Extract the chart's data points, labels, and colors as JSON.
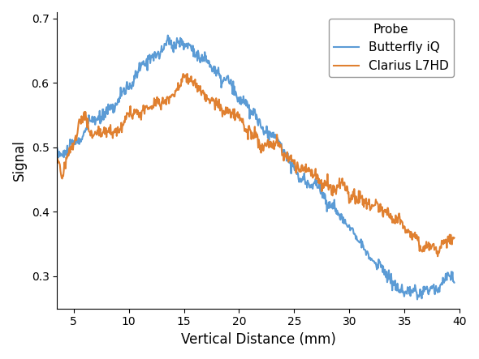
{
  "title": "",
  "xlabel": "Vertical Distance (mm)",
  "ylabel": "Signal",
  "xlim": [
    3.5,
    40
  ],
  "ylim": [
    0.25,
    0.71
  ],
  "yticks": [
    0.3,
    0.4,
    0.5,
    0.6,
    0.7
  ],
  "xticks": [
    5,
    10,
    15,
    20,
    25,
    30,
    35,
    40
  ],
  "legend_title": "Probe",
  "legend_labels": [
    "Butterfly iQ",
    "Clarius L7HD"
  ],
  "line_colors": [
    "#5B9BD5",
    "#E08030"
  ],
  "line_width": 1.5,
  "butterfly_x": [
    3.5,
    4.0,
    4.5,
    5.0,
    5.5,
    6.0,
    6.5,
    7.0,
    7.5,
    8.0,
    8.5,
    9.0,
    9.5,
    10.0,
    10.5,
    11.0,
    11.5,
    12.0,
    12.5,
    13.0,
    13.5,
    14.0,
    14.5,
    15.0,
    15.5,
    16.0,
    16.5,
    17.0,
    17.5,
    18.0,
    18.5,
    19.0,
    19.5,
    20.0,
    20.5,
    21.0,
    21.5,
    22.0,
    22.5,
    23.0,
    23.5,
    24.0,
    24.5,
    25.0,
    25.5,
    26.0,
    26.5,
    27.0,
    27.5,
    28.0,
    28.5,
    29.0,
    29.5,
    30.0,
    30.5,
    31.0,
    31.5,
    32.0,
    32.5,
    33.0,
    33.5,
    34.0,
    34.5,
    35.0,
    35.5,
    36.0,
    36.5,
    37.0,
    37.5,
    38.0,
    38.5,
    39.0,
    39.5
  ],
  "butterfly_y": [
    0.49,
    0.488,
    0.493,
    0.498,
    0.51,
    0.525,
    0.533,
    0.538,
    0.548,
    0.558,
    0.565,
    0.572,
    0.59,
    0.6,
    0.615,
    0.628,
    0.635,
    0.642,
    0.648,
    0.655,
    0.66,
    0.658,
    0.665,
    0.668,
    0.662,
    0.648,
    0.643,
    0.637,
    0.628,
    0.618,
    0.605,
    0.596,
    0.588,
    0.578,
    0.57,
    0.56,
    0.552,
    0.542,
    0.53,
    0.52,
    0.508,
    0.496,
    0.482,
    0.47,
    0.458,
    0.452,
    0.445,
    0.438,
    0.43,
    0.42,
    0.41,
    0.398,
    0.388,
    0.375,
    0.362,
    0.35,
    0.34,
    0.328,
    0.318,
    0.308,
    0.3,
    0.292,
    0.284,
    0.278,
    0.272,
    0.268,
    0.27,
    0.275,
    0.28,
    0.285,
    0.29,
    0.295,
    0.292
  ],
  "clarius_x": [
    3.5,
    4.0,
    4.5,
    5.0,
    5.5,
    6.0,
    6.5,
    7.0,
    7.5,
    8.0,
    8.5,
    9.0,
    9.5,
    10.0,
    10.5,
    11.0,
    11.5,
    12.0,
    12.5,
    13.0,
    13.5,
    14.0,
    14.5,
    15.0,
    15.5,
    16.0,
    16.5,
    17.0,
    17.5,
    18.0,
    18.5,
    19.0,
    19.5,
    20.0,
    20.5,
    21.0,
    21.5,
    22.0,
    22.5,
    23.0,
    23.5,
    24.0,
    24.5,
    25.0,
    25.5,
    26.0,
    26.5,
    27.0,
    27.5,
    28.0,
    28.5,
    29.0,
    29.5,
    30.0,
    30.5,
    31.0,
    31.5,
    32.0,
    32.5,
    33.0,
    33.5,
    34.0,
    34.5,
    35.0,
    35.5,
    36.0,
    36.5,
    37.0,
    37.5,
    38.0,
    38.5,
    39.0,
    39.5
  ],
  "clarius_y": [
    0.47,
    0.473,
    0.488,
    0.503,
    0.54,
    0.548,
    0.535,
    0.525,
    0.52,
    0.52,
    0.525,
    0.53,
    0.545,
    0.548,
    0.552,
    0.555,
    0.558,
    0.562,
    0.568,
    0.572,
    0.578,
    0.585,
    0.6,
    0.61,
    0.602,
    0.598,
    0.592,
    0.585,
    0.578,
    0.57,
    0.562,
    0.555,
    0.548,
    0.54,
    0.532,
    0.525,
    0.518,
    0.51,
    0.505,
    0.5,
    0.495,
    0.49,
    0.482,
    0.478,
    0.47,
    0.462,
    0.455,
    0.45,
    0.445,
    0.44,
    0.438,
    0.435,
    0.432,
    0.428,
    0.425,
    0.422,
    0.418,
    0.415,
    0.41,
    0.405,
    0.4,
    0.392,
    0.385,
    0.378,
    0.368,
    0.358,
    0.35,
    0.345,
    0.342,
    0.348,
    0.352,
    0.355,
    0.352
  ]
}
